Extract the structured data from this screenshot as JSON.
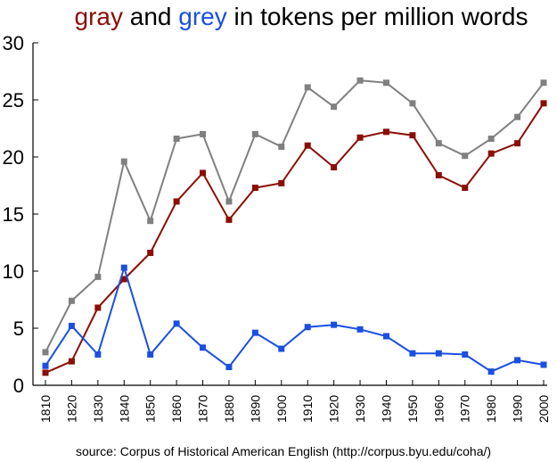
{
  "chart_data": {
    "type": "line",
    "title_parts": [
      {
        "text": "gray",
        "color": "#8b0e04"
      },
      {
        "text": " and ",
        "color": "#000000"
      },
      {
        "text": "grey",
        "color": "#1a4fe0"
      },
      {
        "text": " in tokens per million words",
        "color": "#000000"
      }
    ],
    "source": "source: Corpus of Historical American English (http://corpus.byu.edu/coha/)",
    "x": [
      "1810",
      "1820",
      "1830",
      "1840",
      "1850",
      "1860",
      "1870",
      "1880",
      "1890",
      "1900",
      "1910",
      "1920",
      "1930",
      "1940",
      "1950",
      "1960",
      "1970",
      "1980",
      "1990",
      "2000"
    ],
    "ylim": [
      0,
      30
    ],
    "yticks": [
      "0",
      "5",
      "10",
      "15",
      "20",
      "25",
      "30"
    ],
    "grid": false,
    "series": [
      {
        "key": "total",
        "color": "#808080",
        "values": [
          2.9,
          7.4,
          9.5,
          19.6,
          14.4,
          21.6,
          22.0,
          16.1,
          22.0,
          20.9,
          26.1,
          24.4,
          26.7,
          26.5,
          24.7,
          21.2,
          20.1,
          21.6,
          23.5,
          26.5
        ]
      },
      {
        "key": "gray",
        "color": "#8b0e04",
        "values": [
          1.1,
          2.1,
          6.8,
          9.3,
          11.6,
          16.1,
          18.6,
          14.5,
          17.3,
          17.7,
          21.0,
          19.1,
          21.7,
          22.2,
          21.9,
          18.4,
          17.3,
          20.3,
          21.2,
          24.7
        ]
      },
      {
        "key": "grey",
        "color": "#1a4fe0",
        "values": [
          1.7,
          5.2,
          2.7,
          10.3,
          2.7,
          5.4,
          3.3,
          1.6,
          4.6,
          3.2,
          5.1,
          5.3,
          4.9,
          4.3,
          2.8,
          2.8,
          2.7,
          1.2,
          2.2,
          1.8
        ]
      }
    ]
  }
}
